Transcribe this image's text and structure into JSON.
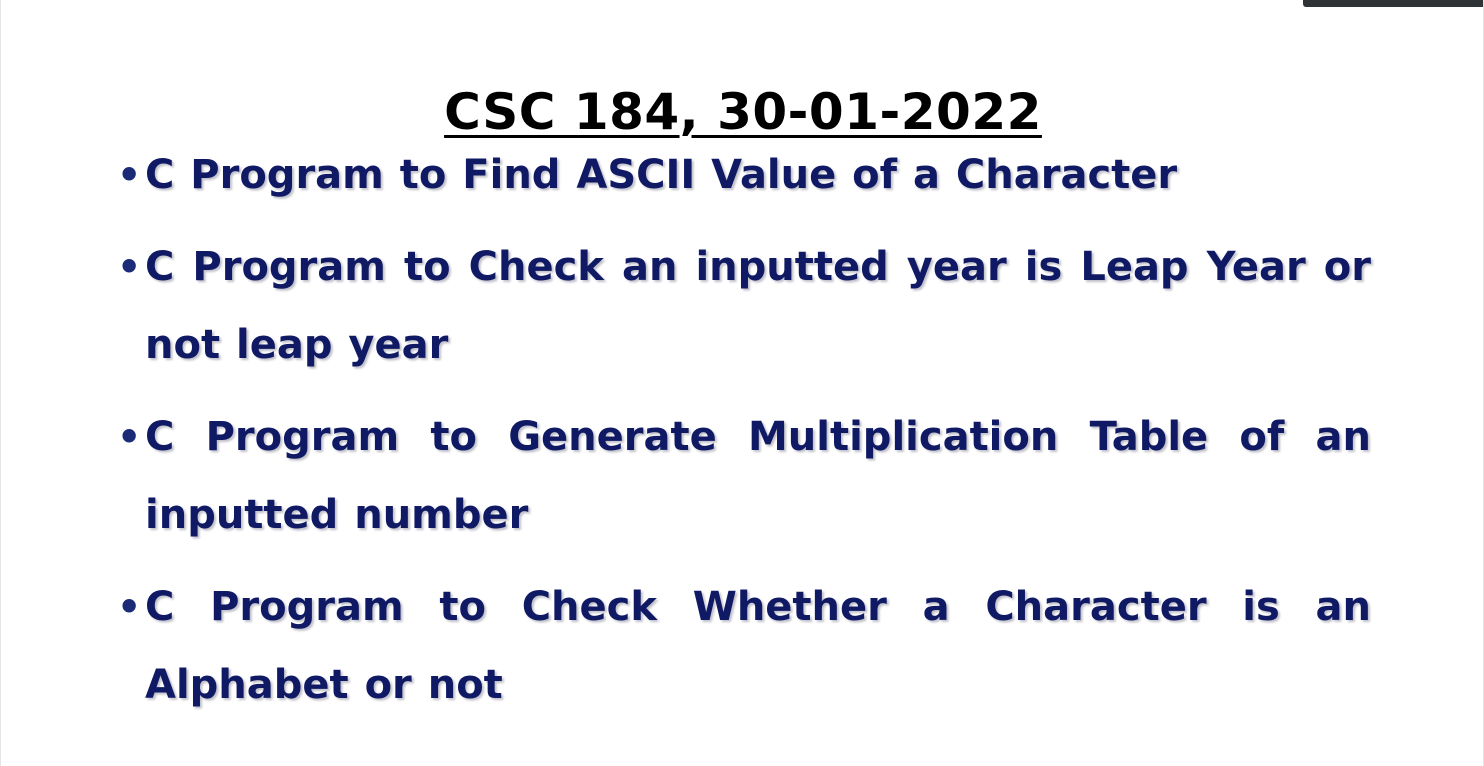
{
  "slide": {
    "title": "CSC 184, 30-01-2022",
    "bullets": [
      {
        "text": "C Program to Find ASCII Value of a Character"
      },
      {
        "text": "C Program to Check an inputted year is Leap Year or not leap year"
      },
      {
        "text": "C Program to Generate Multiplication Table of an inputted number"
      },
      {
        "text": "C Program to Check Whether a Character is an Alphabet or not"
      }
    ],
    "colors": {
      "title": "#000000",
      "bullet_text": "#101a64",
      "background": "#ffffff"
    }
  }
}
